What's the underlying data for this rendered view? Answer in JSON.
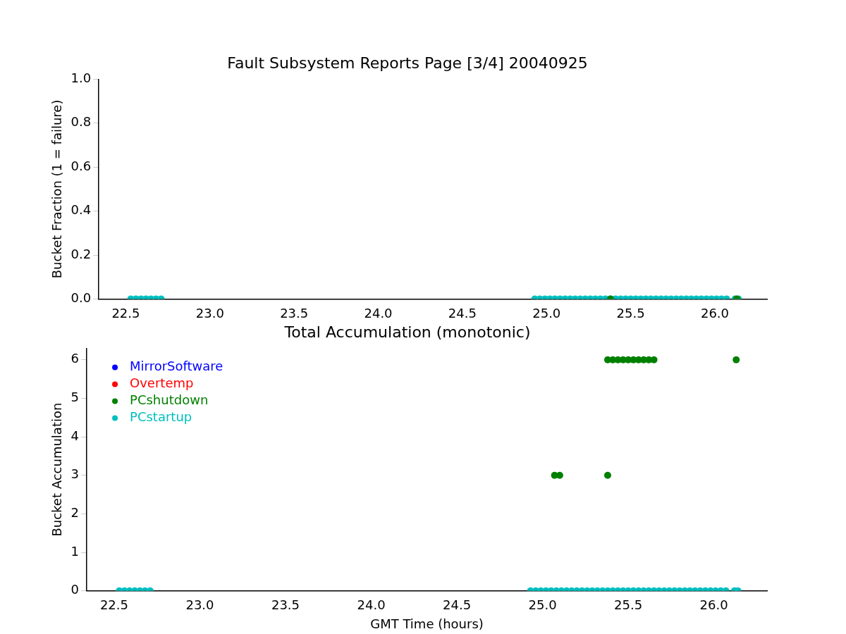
{
  "chart_data": [
    {
      "type": "scatter",
      "title": "Fault Subsystem Reports Page [3/4] 20040925",
      "ylabel": "Bucket Fraction (1 = failure)",
      "xlim": [
        22.34,
        26.31
      ],
      "xticks": [
        {
          "value": 22.5,
          "label": "22.5"
        },
        {
          "value": 23,
          "label": "23.0"
        },
        {
          "value": 23.5,
          "label": "23.5"
        },
        {
          "value": 24,
          "label": "24.0"
        },
        {
          "value": 24.5,
          "label": "24.5"
        },
        {
          "value": 25,
          "label": "25.0"
        },
        {
          "value": 25.5,
          "label": "25.5"
        },
        {
          "value": 26,
          "label": "26.0"
        }
      ],
      "ylim": [
        0,
        1
      ],
      "yticks": [
        {
          "value": 0,
          "label": "0.0"
        },
        {
          "value": 0.2,
          "label": "0.2"
        },
        {
          "value": 0.4,
          "label": "0.4"
        },
        {
          "value": 0.6,
          "label": "0.6"
        },
        {
          "value": 0.8,
          "label": "0.8"
        },
        {
          "value": 1,
          "label": "1.0"
        }
      ],
      "grid": false,
      "marker": "circle",
      "series": [
        {
          "color": "#008000",
          "x": [
            25.38,
            26.13
          ],
          "values": [
            0,
            0
          ]
        },
        {
          "color": "#00bfbf",
          "x": [
            22.53,
            22.56,
            22.59,
            22.62,
            22.65,
            22.68,
            22.71,
            24.93,
            24.96,
            24.99,
            25.02,
            25.05,
            25.08,
            25.11,
            25.14,
            25.17,
            25.2,
            25.23,
            25.26,
            25.29,
            25.32,
            25.35,
            25.38,
            25.41,
            25.44,
            25.47,
            25.5,
            25.53,
            25.56,
            25.59,
            25.62,
            25.65,
            25.68,
            25.71,
            25.74,
            25.77,
            25.8,
            25.83,
            25.86,
            25.89,
            25.92,
            25.95,
            25.98,
            26.01,
            26.04,
            26.07,
            26.12,
            26.14
          ],
          "values": [
            0,
            0,
            0,
            0,
            0,
            0,
            0,
            0,
            0,
            0,
            0,
            0,
            0,
            0,
            0,
            0,
            0,
            0,
            0,
            0,
            0,
            0,
            0,
            0,
            0,
            0,
            0,
            0,
            0,
            0,
            0,
            0,
            0,
            0,
            0,
            0,
            0,
            0,
            0,
            0,
            0,
            0,
            0,
            0,
            0,
            0,
            0,
            0
          ]
        }
      ]
    },
    {
      "type": "scatter",
      "title": "Total Accumulation (monotonic)",
      "xlabel": "GMT Time (hours)",
      "ylabel": "Bucket Accumulation",
      "xlim": [
        22.34,
        26.31
      ],
      "xticks": [
        {
          "value": 22.5,
          "label": "22.5"
        },
        {
          "value": 23,
          "label": "23.0"
        },
        {
          "value": 23.5,
          "label": "23.5"
        },
        {
          "value": 24,
          "label": "24.0"
        },
        {
          "value": 24.5,
          "label": "24.5"
        },
        {
          "value": 25,
          "label": "25.0"
        },
        {
          "value": 25.5,
          "label": "25.5"
        },
        {
          "value": 26,
          "label": "26.0"
        }
      ],
      "ylim": [
        0,
        6.3
      ],
      "yticks": [
        0,
        1,
        2,
        3,
        4,
        5,
        6
      ],
      "grid": false,
      "marker": "circle",
      "legend": "top left",
      "series": [
        {
          "name": "MirrorSoftware",
          "color": "#0000ff"
        },
        {
          "name": "Overtemp",
          "color": "#ff0000"
        },
        {
          "name": "PCshutdown",
          "color": "#008000",
          "x": [
            25.07,
            25.1,
            25.38,
            25.38,
            25.41,
            25.44,
            25.47,
            25.5,
            25.53,
            25.56,
            25.59,
            25.62,
            25.65,
            26.13
          ],
          "values": [
            3,
            3,
            3,
            6,
            6,
            6,
            6,
            6,
            6,
            6,
            6,
            6,
            6,
            6
          ]
        },
        {
          "name": "PCstartup",
          "color": "#00bfbf",
          "x": [
            22.53,
            22.56,
            22.59,
            22.62,
            22.65,
            22.68,
            22.71,
            24.93,
            24.96,
            24.99,
            25.02,
            25.05,
            25.08,
            25.11,
            25.14,
            25.17,
            25.2,
            25.23,
            25.26,
            25.29,
            25.32,
            25.35,
            25.38,
            25.41,
            25.44,
            25.47,
            25.5,
            25.53,
            25.56,
            25.59,
            25.62,
            25.65,
            25.68,
            25.71,
            25.74,
            25.77,
            25.8,
            25.83,
            25.86,
            25.89,
            25.92,
            25.95,
            25.98,
            26.01,
            26.04,
            26.07,
            26.12,
            26.14
          ],
          "values": [
            0,
            0,
            0,
            0,
            0,
            0,
            0,
            0,
            0,
            0,
            0,
            0,
            0,
            0,
            0,
            0,
            0,
            0,
            0,
            0,
            0,
            0,
            0,
            0,
            0,
            0,
            0,
            0,
            0,
            0,
            0,
            0,
            0,
            0,
            0,
            0,
            0,
            0,
            0,
            0,
            0,
            0,
            0,
            0,
            0,
            0,
            0,
            0
          ]
        }
      ]
    }
  ]
}
